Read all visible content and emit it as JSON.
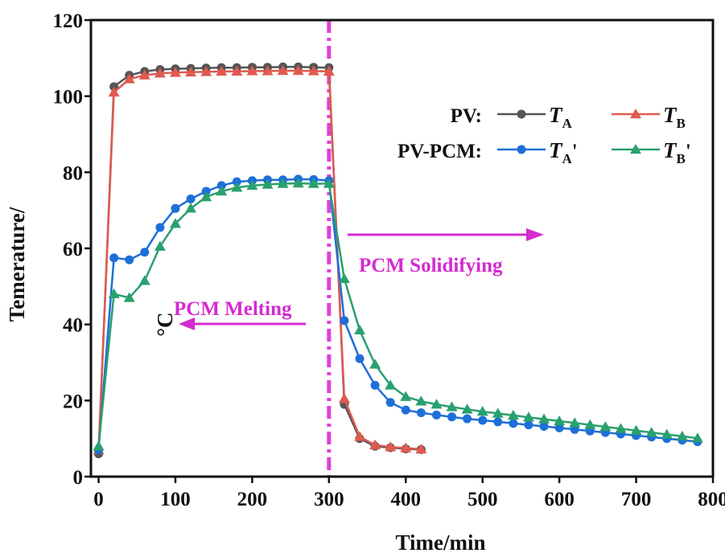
{
  "chart_data": {
    "type": "line",
    "title": "",
    "xlabel": "Time/min",
    "ylabel": "Temerature/",
    "ylabel_unit": "°C",
    "xlim": [
      -10,
      800
    ],
    "ylim": [
      0,
      120
    ],
    "x_ticks": [
      0,
      100,
      200,
      300,
      400,
      500,
      600,
      700,
      800
    ],
    "y_ticks": [
      0,
      20,
      40,
      60,
      80,
      100,
      120
    ],
    "grid": false,
    "legend": {
      "placement": "top-right",
      "groups": [
        {
          "label": "PV:",
          "series": [
            "TA",
            "TB"
          ]
        },
        {
          "label": "PV-PCM:",
          "series": [
            "TA'",
            "TB'"
          ]
        }
      ]
    },
    "series": [
      {
        "name": "TA",
        "base": "T",
        "sub": "A",
        "prime": "",
        "color": "#555555",
        "marker": "circle",
        "points": [
          [
            0,
            6
          ],
          [
            20,
            102.5
          ],
          [
            40,
            105.5
          ],
          [
            60,
            106.5
          ],
          [
            80,
            107
          ],
          [
            100,
            107.2
          ],
          [
            120,
            107.3
          ],
          [
            140,
            107.4
          ],
          [
            160,
            107.5
          ],
          [
            180,
            107.5
          ],
          [
            200,
            107.6
          ],
          [
            220,
            107.6
          ],
          [
            240,
            107.7
          ],
          [
            260,
            107.7
          ],
          [
            280,
            107.6
          ],
          [
            300,
            107.5
          ],
          [
            320,
            19
          ],
          [
            340,
            10
          ],
          [
            360,
            8
          ],
          [
            380,
            7.6
          ],
          [
            400,
            7.3
          ],
          [
            420,
            7.1
          ]
        ]
      },
      {
        "name": "TB",
        "base": "T",
        "sub": "B",
        "prime": "",
        "color": "#e05a50",
        "marker": "triangle",
        "points": [
          [
            0,
            7
          ],
          [
            20,
            101
          ],
          [
            40,
            104.5
          ],
          [
            60,
            105.5
          ],
          [
            80,
            106
          ],
          [
            100,
            106.2
          ],
          [
            120,
            106.3
          ],
          [
            140,
            106.4
          ],
          [
            160,
            106.5
          ],
          [
            180,
            106.5
          ],
          [
            200,
            106.6
          ],
          [
            220,
            106.6
          ],
          [
            240,
            106.7
          ],
          [
            260,
            106.7
          ],
          [
            280,
            106.6
          ],
          [
            300,
            106.5
          ],
          [
            320,
            20.5
          ],
          [
            340,
            10.5
          ],
          [
            360,
            8.3
          ],
          [
            380,
            7.8
          ],
          [
            400,
            7.5
          ],
          [
            420,
            7.2
          ]
        ]
      },
      {
        "name": "TA'",
        "base": "T",
        "sub": "A",
        "prime": "'",
        "color": "#1e6fd8",
        "marker": "circle",
        "points": [
          [
            0,
            7
          ],
          [
            20,
            57.5
          ],
          [
            40,
            57
          ],
          [
            60,
            59
          ],
          [
            80,
            65.5
          ],
          [
            100,
            70.5
          ],
          [
            120,
            73
          ],
          [
            140,
            75
          ],
          [
            160,
            76.5
          ],
          [
            180,
            77.5
          ],
          [
            200,
            77.8
          ],
          [
            220,
            78
          ],
          [
            240,
            78
          ],
          [
            260,
            78.2
          ],
          [
            280,
            78.1
          ],
          [
            300,
            77.8
          ],
          [
            320,
            41
          ],
          [
            340,
            31
          ],
          [
            360,
            24
          ],
          [
            380,
            19.5
          ],
          [
            400,
            17.5
          ],
          [
            420,
            16.8
          ],
          [
            440,
            16.2
          ],
          [
            460,
            15.7
          ],
          [
            480,
            15.2
          ],
          [
            500,
            14.8
          ],
          [
            520,
            14.4
          ],
          [
            540,
            14
          ],
          [
            560,
            13.6
          ],
          [
            580,
            13.2
          ],
          [
            600,
            12.8
          ],
          [
            620,
            12.4
          ],
          [
            640,
            12
          ],
          [
            660,
            11.6
          ],
          [
            680,
            11.2
          ],
          [
            700,
            10.8
          ],
          [
            720,
            10.4
          ],
          [
            740,
            10
          ],
          [
            760,
            9.6
          ],
          [
            780,
            9.2
          ]
        ]
      },
      {
        "name": "TB'",
        "base": "T",
        "sub": "B",
        "prime": "'",
        "color": "#2aa06e",
        "marker": "triangle",
        "points": [
          [
            0,
            8
          ],
          [
            20,
            48
          ],
          [
            40,
            47
          ],
          [
            60,
            51.5
          ],
          [
            80,
            60.5
          ],
          [
            100,
            66.5
          ],
          [
            120,
            70.5
          ],
          [
            140,
            73.5
          ],
          [
            160,
            75
          ],
          [
            180,
            76
          ],
          [
            200,
            76.5
          ],
          [
            220,
            76.8
          ],
          [
            240,
            77
          ],
          [
            260,
            77.1
          ],
          [
            280,
            77
          ],
          [
            300,
            77
          ],
          [
            320,
            52
          ],
          [
            340,
            38.5
          ],
          [
            360,
            29.5
          ],
          [
            380,
            24
          ],
          [
            400,
            21
          ],
          [
            420,
            19.8
          ],
          [
            440,
            19
          ],
          [
            460,
            18.3
          ],
          [
            480,
            17.7
          ],
          [
            500,
            17.1
          ],
          [
            520,
            16.6
          ],
          [
            540,
            16.1
          ],
          [
            560,
            15.6
          ],
          [
            580,
            15.1
          ],
          [
            600,
            14.6
          ],
          [
            620,
            14.1
          ],
          [
            640,
            13.6
          ],
          [
            660,
            13.1
          ],
          [
            680,
            12.6
          ],
          [
            700,
            12.1
          ],
          [
            720,
            11.6
          ],
          [
            740,
            11.1
          ],
          [
            760,
            10.6
          ],
          [
            780,
            10.1
          ]
        ]
      }
    ],
    "vline": {
      "x": 300,
      "color": "#e040d8"
    },
    "annotations": [
      {
        "text": "PCM Melting",
        "color": "#d42ad0",
        "arrow": "left"
      },
      {
        "text": "PCM Solidifying",
        "color": "#d42ad0",
        "arrow": "right"
      }
    ]
  }
}
